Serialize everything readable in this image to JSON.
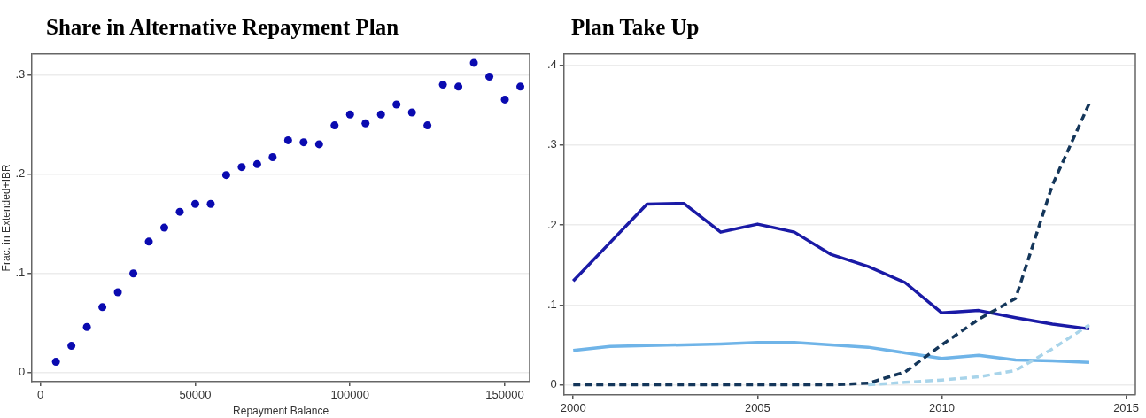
{
  "chart_data": [
    {
      "type": "scatter",
      "title": "Share in Alternative Repayment Plan",
      "xlabel": "Repayment Balance",
      "ylabel": "Frac. in Extended+IBR",
      "x": [
        5000,
        10000,
        15000,
        20000,
        25000,
        30000,
        35000,
        40000,
        45000,
        50000,
        55000,
        60000,
        65000,
        70000,
        75000,
        80000,
        85000,
        90000,
        95000,
        100000,
        105000,
        110000,
        115000,
        120000,
        125000,
        130000,
        135000,
        140000,
        145000,
        150000,
        155000
      ],
      "values": [
        0.011,
        0.027,
        0.046,
        0.066,
        0.081,
        0.1,
        0.132,
        0.146,
        0.162,
        0.17,
        0.17,
        0.199,
        0.207,
        0.21,
        0.217,
        0.234,
        0.232,
        0.23,
        0.249,
        0.26,
        0.251,
        0.26,
        0.27,
        0.262,
        0.249,
        0.29,
        0.288,
        0.312,
        0.298,
        0.275,
        0.288
      ],
      "color": "#0a0ab0",
      "marker": "circle",
      "xlim": [
        -2700,
        158000
      ],
      "xticks": [
        0,
        50000,
        100000,
        150000
      ],
      "ylim": [
        -0.009,
        0.321
      ],
      "yticks": [
        0,
        {
          "value": 0.1,
          "label": ".1"
        },
        {
          "value": 0.2,
          "label": ".2"
        },
        {
          "value": 0.3,
          "label": ".3"
        }
      ],
      "grid": "y"
    },
    {
      "type": "line",
      "title": "Plan Take Up",
      "marker": "none",
      "x": [
        2000,
        2001,
        2002,
        2003,
        2004,
        2005,
        2006,
        2007,
        2008,
        2009,
        2010,
        2011,
        2012,
        2013,
        2014
      ],
      "series": [
        {
          "color": "#1a1aa6",
          "line_style": "solid",
          "values": [
            0.13,
            0.178,
            0.226,
            0.227,
            0.191,
            0.201,
            0.191,
            0.163,
            0.148,
            0.128,
            0.09,
            0.093,
            0.084,
            0.076,
            0.07
          ]
        },
        {
          "color": "#6fb4e8",
          "line_style": "solid",
          "values": [
            0.043,
            0.048,
            0.049,
            0.05,
            0.051,
            0.053,
            0.053,
            0.05,
            0.047,
            0.04,
            0.033,
            0.037,
            0.031,
            0.03,
            0.028
          ]
        },
        {
          "color": "#a8d4ea",
          "line_style": "dashed",
          "values": [
            null,
            null,
            null,
            null,
            null,
            null,
            null,
            null,
            0,
            0.003,
            0.006,
            0.01,
            0.018,
            0.045,
            0.075
          ]
        },
        {
          "color": "#14365a",
          "line_style": "dashed",
          "values": [
            0,
            0,
            0,
            0,
            0,
            0,
            0,
            0,
            0.002,
            0.016,
            0.05,
            0.082,
            0.108,
            0.25,
            0.352
          ]
        }
      ],
      "xlim": [
        1999.75,
        2015.25
      ],
      "xticks": [
        2000,
        2005,
        2010,
        2015
      ],
      "ylim": [
        -0.012,
        0.414
      ],
      "yticks": [
        0,
        {
          "value": 0.1,
          "label": ".1"
        },
        {
          "value": 0.2,
          "label": ".2"
        },
        {
          "value": 0.3,
          "label": ".3"
        },
        {
          "value": 0.4,
          "label": ".4"
        }
      ],
      "grid": "y"
    }
  ]
}
